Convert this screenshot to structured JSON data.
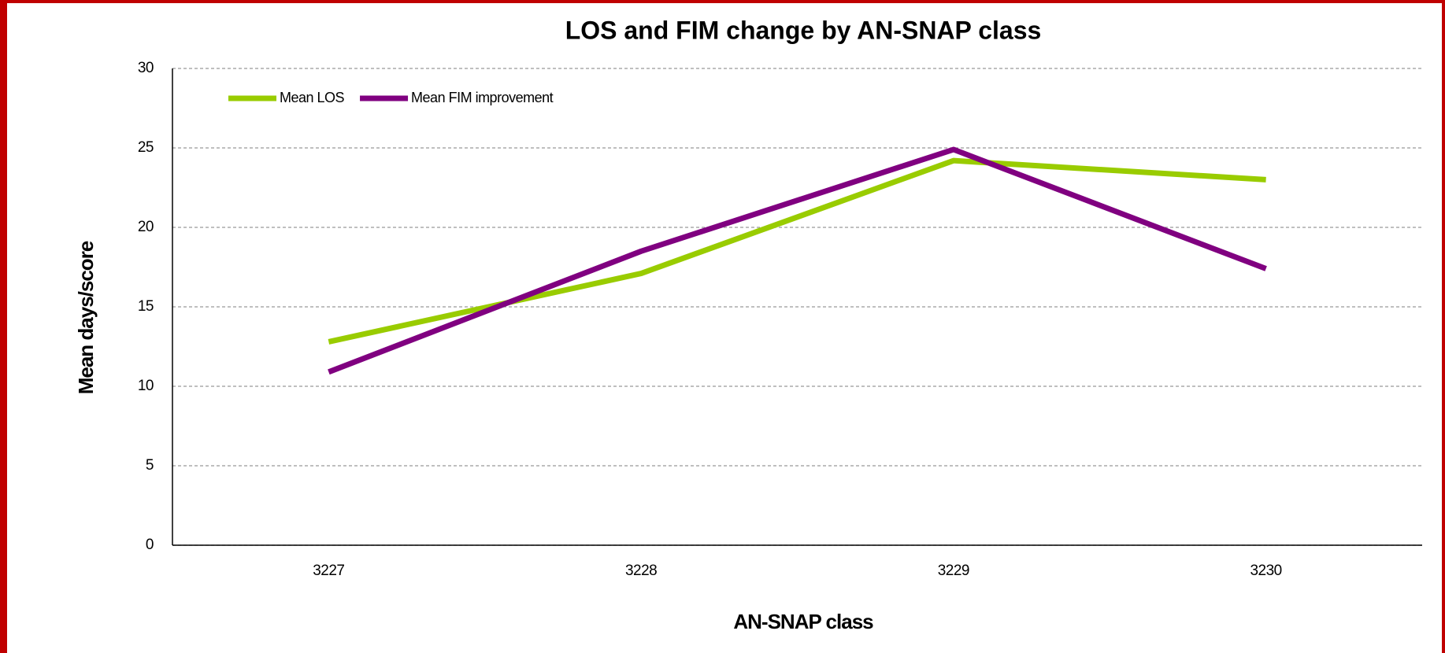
{
  "chart_data": {
    "type": "line",
    "title": "LOS and FIM change by AN-SNAP class",
    "x_label": "AN-SNAP class",
    "y_label": "Mean days/score",
    "categories": [
      "3227",
      "3228",
      "3229",
      "3230"
    ],
    "series": [
      {
        "name": "Mean LOS",
        "color": "#99cc00",
        "values": [
          12.8,
          17.1,
          24.2,
          23.0
        ]
      },
      {
        "name": "Mean FIM improvement",
        "color": "#800080",
        "values": [
          10.9,
          18.5,
          24.9,
          17.4
        ]
      }
    ],
    "ylim": [
      0,
      30
    ],
    "yticks": [
      0,
      5,
      10,
      15,
      20,
      25,
      30
    ],
    "grid": true,
    "legend": "top-left"
  }
}
